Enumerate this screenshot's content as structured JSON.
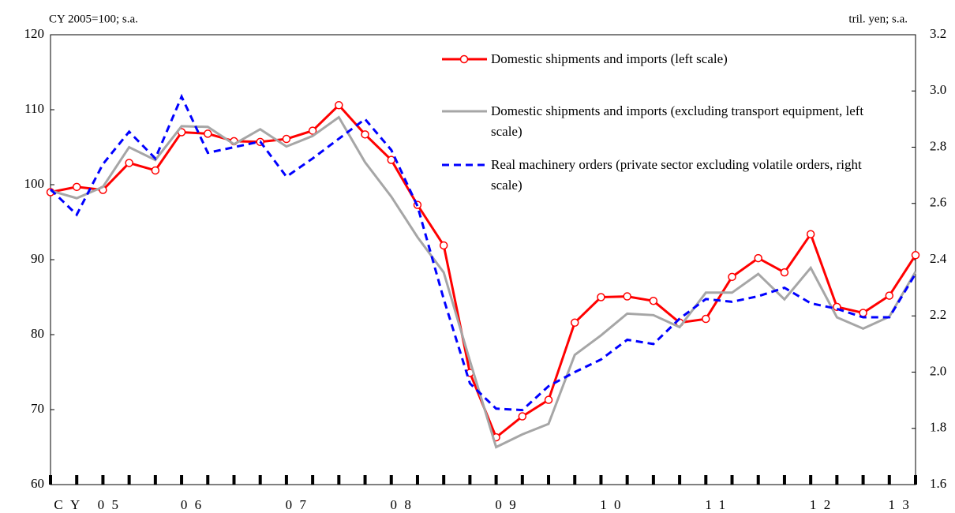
{
  "chart_data": {
    "type": "line",
    "annotations": [
      "CY 2005=100; s.a.",
      "tril. yen; s.a."
    ],
    "categories": [
      "CY 05",
      null,
      null,
      null,
      "06",
      null,
      null,
      null,
      "07",
      null,
      null,
      null,
      "08",
      null,
      null,
      null,
      "09",
      null,
      null,
      null,
      "10",
      null,
      null,
      null,
      "11",
      null,
      null,
      null,
      "12",
      null,
      null,
      null,
      "13",
      null
    ],
    "series": [
      {
        "name": "Domestic shipments and imports (left scale)",
        "color": "#ff0000",
        "markers": true,
        "values": [
          99.0,
          99.7,
          99.3,
          102.9,
          101.9,
          107.0,
          106.8,
          105.8,
          105.7,
          106.1,
          107.2,
          110.6,
          106.7,
          103.3,
          97.3,
          91.9,
          74.9,
          66.3,
          69.1,
          71.3,
          81.6,
          85.0,
          85.1,
          84.5,
          81.6,
          82.1,
          87.7,
          90.2,
          88.3,
          93.4,
          83.7,
          82.9,
          85.2,
          90.6
        ]
      },
      {
        "name": "Domestic shipments and imports (excluding transport equipment, left scale)",
        "color": "#a6a6a6",
        "values": [
          99.2,
          98.2,
          99.7,
          105.0,
          103.3,
          107.8,
          107.7,
          105.4,
          107.4,
          105.1,
          106.5,
          109.0,
          103.0,
          98.4,
          93.0,
          88.3,
          76.5,
          65.0,
          66.7,
          68.1,
          77.3,
          79.9,
          82.8,
          82.6,
          81.0,
          85.6,
          85.6,
          88.1,
          84.7,
          88.9,
          82.3,
          80.8,
          82.4,
          88.4
        ]
      },
      {
        "name": "Real machinery orders (private sector excluding volatile orders, right scale)",
        "color": "#0000ff",
        "dashed": true,
        "axis": "y2",
        "values": [
          2.65,
          2.56,
          2.74,
          2.855,
          2.76,
          2.98,
          2.78,
          2.8,
          2.82,
          2.695,
          2.76,
          2.83,
          2.9,
          2.79,
          2.59,
          2.26,
          1.96,
          1.87,
          1.865,
          1.95,
          2.0,
          2.045,
          2.115,
          2.1,
          2.19,
          2.26,
          2.25,
          2.27,
          2.3,
          2.245,
          2.225,
          2.195,
          2.195,
          2.35
        ]
      }
    ],
    "ylim": [
      60,
      120
    ],
    "yticks": [
      60,
      70,
      80,
      90,
      100,
      110,
      120
    ],
    "y2lim": [
      1.6,
      3.2
    ],
    "y2ticks": [
      1.6,
      1.8,
      {
        "value": 2,
        "label": "2.0"
      },
      2.2,
      2.4,
      2.6,
      2.8,
      {
        "value": 3,
        "label": "3.0"
      },
      3.2
    ]
  }
}
